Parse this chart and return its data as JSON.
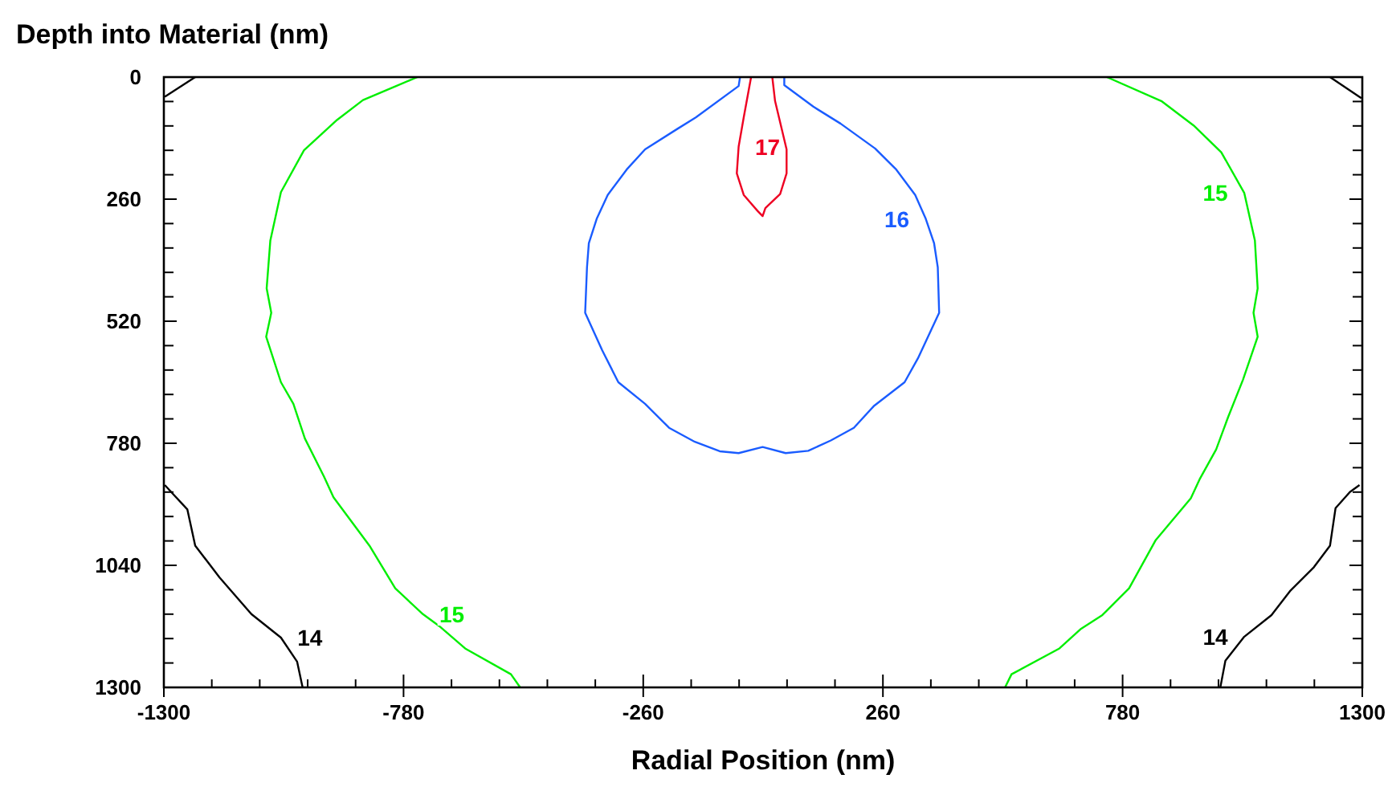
{
  "chart_data": {
    "type": "line",
    "xlabel": "Radial Position (nm)",
    "ylabel": "Depth into Material (nm)",
    "marker": "none",
    "line_style": "solid",
    "grid": false,
    "xlim": [
      -1300,
      1300
    ],
    "ylim": [
      1300,
      0
    ],
    "xticks": [
      -1300,
      {
        "value": -1196,
        "label": null
      },
      {
        "value": -1092,
        "label": null
      },
      {
        "value": -988,
        "label": null
      },
      {
        "value": -884,
        "label": null
      },
      -780,
      {
        "value": -676,
        "label": null
      },
      {
        "value": -572,
        "label": null
      },
      {
        "value": -468,
        "label": null
      },
      {
        "value": -364,
        "label": null
      },
      -260,
      {
        "value": -156,
        "label": null
      },
      {
        "value": -52,
        "label": null
      },
      {
        "value": 52,
        "label": null
      },
      {
        "value": 156,
        "label": null
      },
      260,
      {
        "value": 364,
        "label": null
      },
      {
        "value": 468,
        "label": null
      },
      {
        "value": 572,
        "label": null
      },
      {
        "value": 676,
        "label": null
      },
      780,
      {
        "value": 884,
        "label": null
      },
      {
        "value": 988,
        "label": null
      },
      {
        "value": 1092,
        "label": null
      },
      {
        "value": 1196,
        "label": null
      },
      1300
    ],
    "yticks": [
      0,
      {
        "value": 52,
        "label": null
      },
      {
        "value": 104,
        "label": null
      },
      {
        "value": 156,
        "label": null
      },
      {
        "value": 208,
        "label": null
      },
      260,
      {
        "value": 312,
        "label": null
      },
      {
        "value": 364,
        "label": null
      },
      {
        "value": 416,
        "label": null
      },
      {
        "value": 468,
        "label": null
      },
      520,
      {
        "value": 572,
        "label": null
      },
      {
        "value": 624,
        "label": null
      },
      {
        "value": 676,
        "label": null
      },
      {
        "value": 728,
        "label": null
      },
      780,
      {
        "value": 832,
        "label": null
      },
      {
        "value": 884,
        "label": null
      },
      {
        "value": 936,
        "label": null
      },
      {
        "value": 988,
        "label": null
      },
      1040,
      {
        "value": 1092,
        "label": null
      },
      {
        "value": 1144,
        "label": null
      },
      {
        "value": 1196,
        "label": null
      },
      {
        "value": 1248,
        "label": null
      },
      1300
    ],
    "series": [
      {
        "color": "#000000",
        "x": [
          -1298,
          -1232
        ],
        "values": [
          42,
          0
        ]
      },
      {
        "name": "14",
        "color": "#000000",
        "x": [
          -1298,
          -1284,
          -1249,
          -1232,
          -1179,
          -1110,
          -1046,
          -1011,
          -999
        ],
        "values": [
          869,
          884,
          921,
          998,
          1066,
          1144,
          1194,
          1245,
          1300
        ]
      },
      {
        "name": "15",
        "color": "#00ee00",
        "x": [
          -750,
          -796,
          -868,
          -924,
          -996,
          -1046,
          -1069,
          -1077,
          -1067,
          -1078,
          -1046,
          -1019,
          -994,
          -953,
          -932,
          -854,
          -798,
          -738,
          -703,
          -645,
          -547,
          -527
        ],
        "values": [
          0,
          19,
          49,
          91,
          156,
          245,
          348,
          450,
          502,
          553,
          650,
          696,
          770,
          850,
          895,
          998,
          1089,
          1144,
          1169,
          1218,
          1272,
          1300
        ]
      },
      {
        "name": "16",
        "color": "#1a5cff",
        "x": [
          -50,
          -53,
          -146,
          -187,
          -256,
          -296,
          -337,
          -361,
          -378,
          -382,
          -386,
          -349,
          -314,
          -256,
          -204,
          -148,
          -94,
          -53,
          -1,
          49,
          98,
          147,
          197,
          240,
          307,
          336,
          382,
          379,
          371,
          353,
          330,
          289,
          243,
          168,
          109,
          46,
          46
        ],
        "values": [
          0,
          19,
          86,
          111,
          154,
          197,
          251,
          302,
          354,
          405,
          502,
          582,
          650,
          696,
          747,
          777,
          797,
          801,
          788,
          801,
          796,
          774,
          747,
          701,
          650,
          599,
          502,
          405,
          354,
          302,
          251,
          197,
          152,
          99,
          63,
          17,
          0
        ]
      },
      {
        "name": "17",
        "color": "#ee0022",
        "x": [
          20,
          26,
          51,
          51,
          37,
          5,
          -1,
          -12,
          -42,
          -57,
          -53,
          -42,
          -26
        ],
        "values": [
          0,
          51,
          154,
          205,
          249,
          279,
          296,
          285,
          251,
          205,
          148,
          86,
          0
        ]
      },
      {
        "name": "15",
        "color": "#00ee00",
        "x": [
          525,
          539,
          643,
          690,
          736,
          794,
          852,
          928,
          948,
          983,
          1009,
          1041,
          1073,
          1064,
          1073,
          1067,
          1044,
          994,
          934,
          864,
          746
        ],
        "values": [
          1300,
          1272,
          1217,
          1175,
          1146,
          1089,
          986,
          897,
          855,
          793,
          724,
          645,
          553,
          502,
          450,
          348,
          247,
          160,
          103,
          51,
          0
        ]
      },
      {
        "color": "#000000",
        "x": [
          1230,
          1298
        ],
        "values": [
          0,
          45
        ]
      },
      {
        "name": "14",
        "color": "#000000",
        "x": [
          1294,
          1273,
          1242,
          1230,
          1195,
          1143,
          1103,
          1044,
          1003,
          992
        ],
        "values": [
          869,
          884,
          918,
          998,
          1044,
          1095,
          1146,
          1192,
          1243,
          1300
        ]
      }
    ]
  }
}
